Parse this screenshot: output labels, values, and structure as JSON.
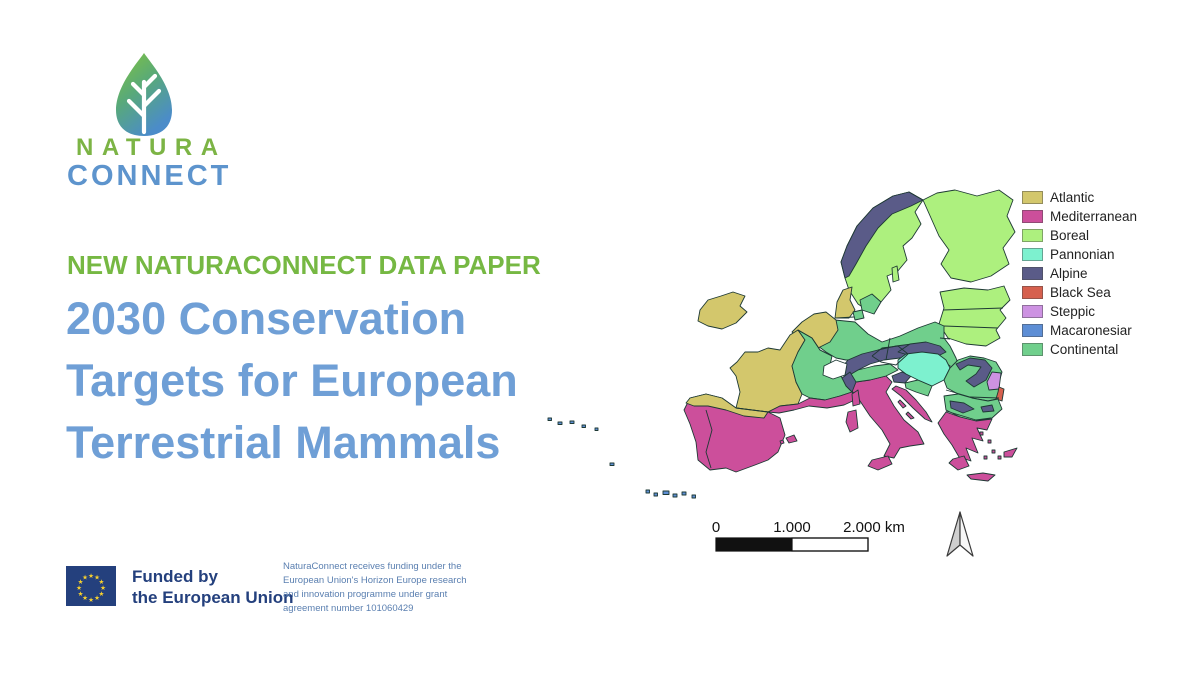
{
  "slide": {
    "background": "#ffffff"
  },
  "logo": {
    "wordmark_top": "NATURA",
    "wordmark_bottom": "CONNECT",
    "wordmark_top_color": "#7cb445",
    "wordmark_bottom_color": "#5d94cd",
    "leaf_gradient_top": "#82c43c",
    "leaf_gradient_mid": "#58a97a",
    "leaf_gradient_bottom": "#4b8cc9"
  },
  "headline": {
    "eyebrow": "NEW NATURACONNECT DATA PAPER",
    "eyebrow_color": "#76b843",
    "title_lines": [
      "2030 Conservation",
      "Targets for European",
      "Terrestrial Mammals"
    ],
    "title_color": "#6f9fd6"
  },
  "map": {
    "border_color": "#1e3934",
    "legend": {
      "items": [
        {
          "key": "atlantic",
          "label": "Atlantic",
          "color": "#d3c76c"
        },
        {
          "key": "mediterranean",
          "label": "Mediterranean",
          "color": "#cc4f9b"
        },
        {
          "key": "boreal",
          "label": "Boreal",
          "color": "#adf07e"
        },
        {
          "key": "pannonian",
          "label": "Pannonian",
          "color": "#7df1cf"
        },
        {
          "key": "alpine",
          "label": "Alpine",
          "color": "#5a5b88"
        },
        {
          "key": "blacksea",
          "label": "Black Sea",
          "color": "#d6604e"
        },
        {
          "key": "steppic",
          "label": "Steppic",
          "color": "#cd92e2"
        },
        {
          "key": "macaronesian",
          "label": "Macaronesiar",
          "color": "#5d8ed5"
        },
        {
          "key": "continental",
          "label": "Continental",
          "color": "#70cf8c"
        }
      ]
    },
    "scalebar": {
      "labels": [
        "0",
        "1.000",
        "2.000 km"
      ]
    }
  },
  "funding": {
    "flag_color": "#24407d",
    "star_color": "#f8d12e",
    "funded_by_lines": [
      "Funded by",
      "the European Union"
    ],
    "funded_by_color": "#24407d",
    "disclaimer_lines": [
      "NaturaConnect receives funding under the",
      "European Union's Horizon Europe research",
      "and innovation programme under grant",
      "agreement number 101060429"
    ],
    "disclaimer_color": "#5a7fb0"
  }
}
